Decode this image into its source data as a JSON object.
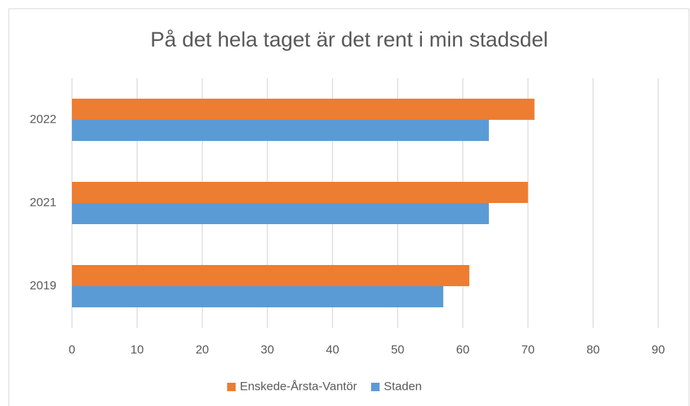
{
  "chart_data": {
    "type": "hbar",
    "title": "På det hela taget är det rent i min stadsdel",
    "categories": [
      "2022",
      "2021",
      "2019"
    ],
    "series": [
      {
        "name": "Enskede-Årsta-Vantör",
        "color": "#ed7d31",
        "values": [
          71,
          70,
          61
        ]
      },
      {
        "name": "Staden",
        "color": "#5b9bd5",
        "values": [
          64,
          64,
          57
        ]
      }
    ],
    "xlim": [
      0,
      90
    ],
    "xticks": [
      0,
      10,
      20,
      30,
      40,
      50,
      60,
      70,
      80,
      90
    ],
    "grid": true,
    "legend": "bottom"
  }
}
